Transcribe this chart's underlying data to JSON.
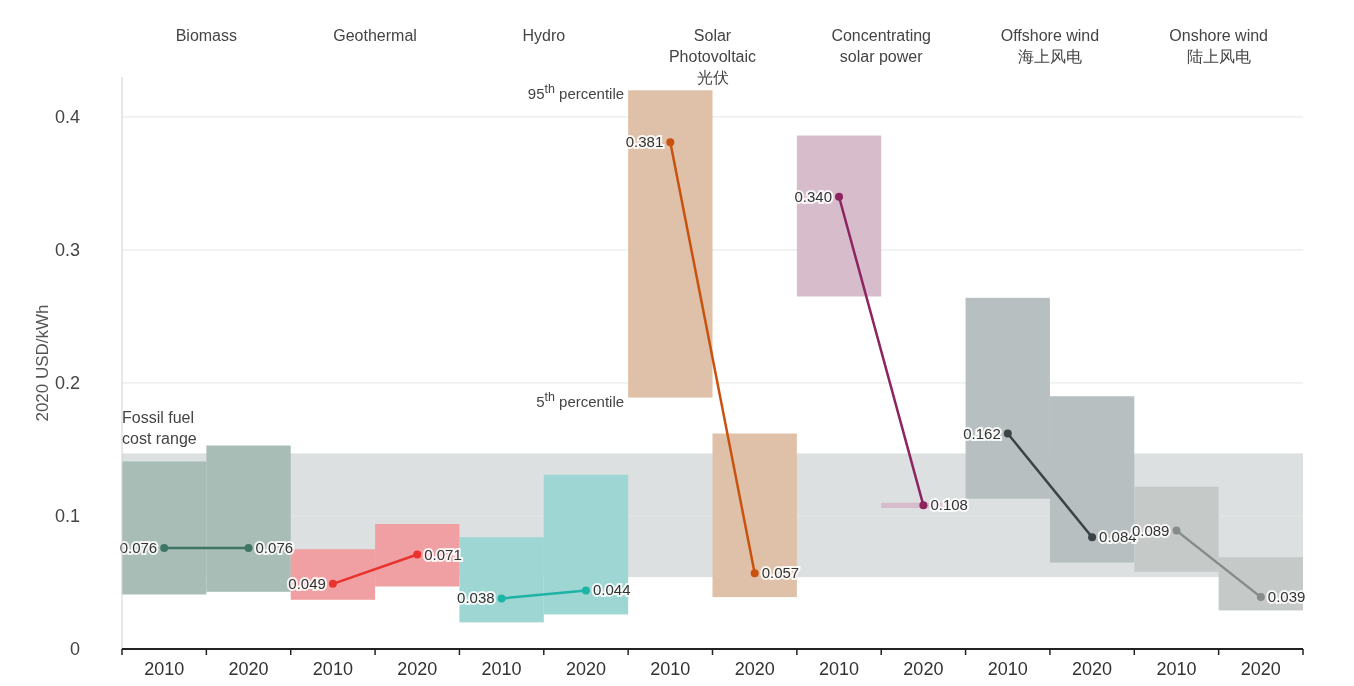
{
  "chart_data": {
    "type": "bar",
    "ylabel": "2020 USD/kWh",
    "ylim": [
      0,
      0.43
    ],
    "yticks": [
      0,
      0.1,
      0.2,
      0.3,
      0.4
    ],
    "grid": "y",
    "marker": "circle",
    "categories": [
      "2010",
      "2020",
      "2010",
      "2020",
      "2010",
      "2020",
      "2010",
      "2020",
      "2010",
      "2020",
      "2010",
      "2020",
      "2010",
      "2020"
    ],
    "series": [
      {
        "type": "bar",
        "colors": [
          "#a8bdb5",
          "#a8bdb5",
          "#f0a0a3",
          "#f0a0a3",
          "#9dd6d2",
          "#9dd6d2",
          "#dfc0a8",
          "#dfc0a8",
          "#d7bccc",
          "#d7bccc",
          "#b8bfc0",
          "#b8bfc0",
          "#c5cac9",
          "#c5cac9"
        ],
        "base": [
          0.041,
          0.043,
          0.037,
          0.047,
          0.02,
          0.026,
          0.189,
          0.039,
          0.265,
          0.106,
          0.113,
          0.065,
          0.058,
          0.029
        ],
        "values": [
          0.1,
          0.11,
          0.038,
          0.047,
          0.064,
          0.105,
          0.231,
          0.123,
          0.121,
          0.004,
          0.151,
          0.125,
          0.064,
          0.04
        ]
      },
      {
        "type": "line",
        "color": "#3f7565",
        "values": [
          0.076,
          0.076,
          null,
          null,
          null,
          null,
          null,
          null,
          null,
          null,
          null,
          null,
          null,
          null
        ],
        "value_labels": [
          "0.076",
          "0.076",
          null,
          null,
          null,
          null,
          null,
          null,
          null,
          null,
          null,
          null,
          null,
          null
        ]
      },
      {
        "type": "line",
        "color": "#e8332f",
        "values": [
          null,
          null,
          0.049,
          0.071,
          null,
          null,
          null,
          null,
          null,
          null,
          null,
          null,
          null,
          null
        ],
        "value_labels": [
          null,
          null,
          "0.049",
          "0.071",
          null,
          null,
          null,
          null,
          null,
          null,
          null,
          null,
          null,
          null
        ]
      },
      {
        "type": "line",
        "color": "#1db3a5",
        "values": [
          null,
          null,
          null,
          null,
          0.038,
          0.044,
          null,
          null,
          null,
          null,
          null,
          null,
          null,
          null
        ],
        "value_labels": [
          null,
          null,
          null,
          null,
          "0.038",
          "0.044",
          null,
          null,
          null,
          null,
          null,
          null,
          null,
          null
        ]
      },
      {
        "type": "line",
        "color": "#c9520e",
        "values": [
          null,
          null,
          null,
          null,
          null,
          null,
          0.381,
          0.057,
          null,
          null,
          null,
          null,
          null,
          null
        ],
        "value_labels": [
          null,
          null,
          null,
          null,
          null,
          null,
          "0.381",
          "0.057",
          null,
          null,
          null,
          null,
          null,
          null
        ]
      },
      {
        "type": "line",
        "color": "#8c2460",
        "values": [
          null,
          null,
          null,
          null,
          null,
          null,
          null,
          null,
          0.34,
          0.108,
          null,
          null,
          null,
          null
        ],
        "value_labels": [
          null,
          null,
          null,
          null,
          null,
          null,
          null,
          null,
          "0.340",
          "0.108",
          null,
          null,
          null,
          null
        ]
      },
      {
        "type": "line",
        "color": "#3a4346",
        "values": [
          null,
          null,
          null,
          null,
          null,
          null,
          null,
          null,
          null,
          null,
          0.162,
          0.084,
          null,
          null
        ],
        "value_labels": [
          null,
          null,
          null,
          null,
          null,
          null,
          null,
          null,
          null,
          null,
          "0.162",
          "0.084",
          null,
          null
        ]
      },
      {
        "type": "line",
        "color": "#868c8a",
        "values": [
          null,
          null,
          null,
          null,
          null,
          null,
          null,
          null,
          null,
          null,
          null,
          null,
          0.089,
          0.039
        ],
        "value_labels": [
          null,
          null,
          null,
          null,
          null,
          null,
          null,
          null,
          null,
          null,
          null,
          null,
          "0.089",
          "0.039"
        ]
      }
    ],
    "bands": [
      {
        "axis": "y",
        "from": 0.054,
        "to": 0.147,
        "label": "Fossil fuel cost range",
        "color": "#dde0e0"
      }
    ],
    "annotations": [
      "Biomass",
      "Geothermal",
      "Hydro",
      "Solar Photovoltaic 光伏",
      "Concentrating solar power",
      "Offshore wind 海上风电",
      "Onshore wind 陆上风电",
      "95$^{th}$ percentile",
      "5$^{th}$ percentile"
    ]
  }
}
